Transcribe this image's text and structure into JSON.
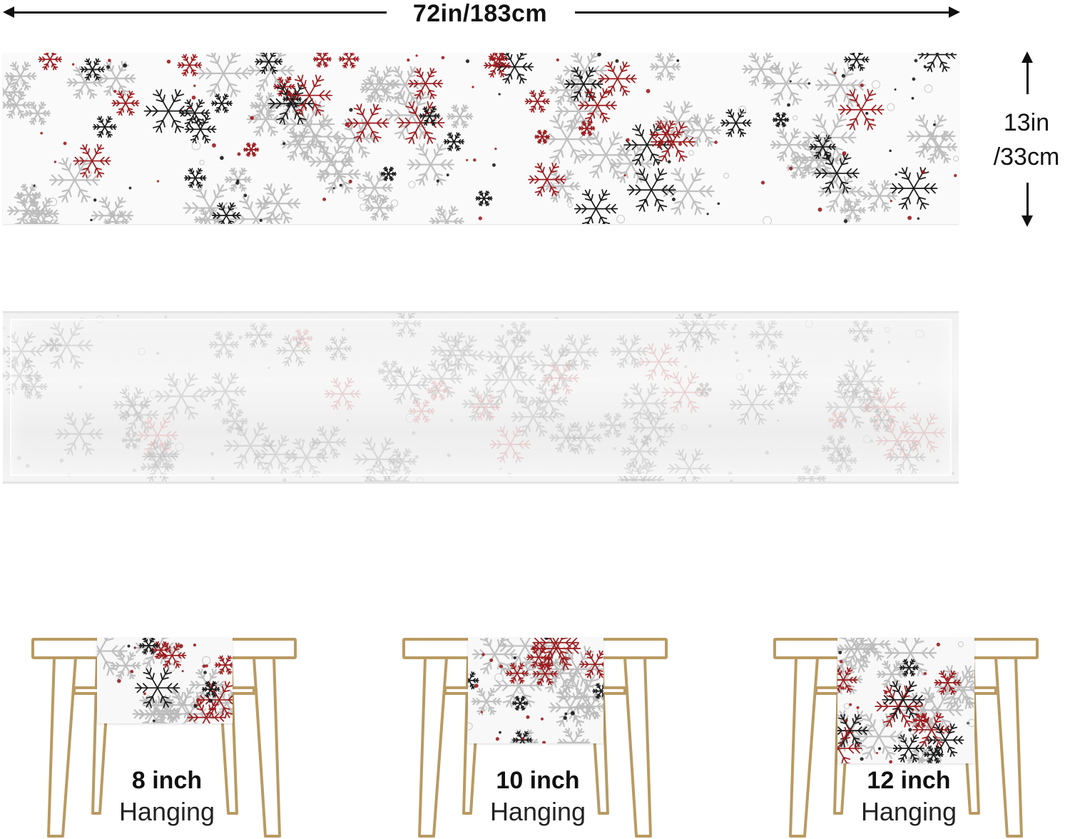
{
  "dimensions": {
    "width_label": "72in/183cm",
    "height_label_line1": "13in",
    "height_label_line2": "/33cm"
  },
  "hanging_options": [
    {
      "size": "8 inch",
      "label": "Hanging"
    },
    {
      "size": "10 inch",
      "label": "Hanging"
    },
    {
      "size": "12 inch",
      "label": "Hanging"
    }
  ],
  "colors": {
    "snow_red": "#9b1b1e",
    "snow_black": "#1a1a1a",
    "snow_grey": "#b9b9b9",
    "table_wood": "#b99a62"
  },
  "icons": [
    "arrow-left-icon",
    "arrow-right-icon",
    "arrow-up-icon",
    "arrow-down-icon",
    "snowflake-icon",
    "table-icon"
  ]
}
